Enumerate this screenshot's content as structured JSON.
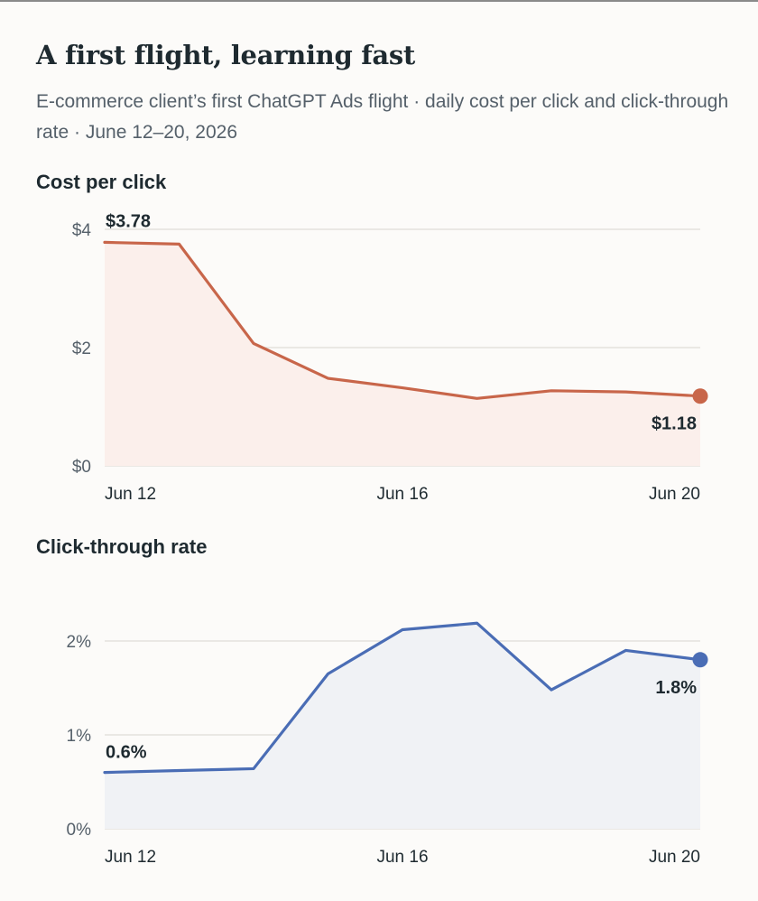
{
  "header": {
    "title": "A first flight, learning fast",
    "subtitle": "E-commerce client’s first ChatGPT Ads flight · daily cost per click and click-through rate · June 12–20, 2026"
  },
  "colors": {
    "cpc_line": "#c8664a",
    "cpc_fill": "#fbefeb",
    "ctr_line": "#4a6db5",
    "ctr_fill": "#f0f2f5",
    "grid": "#e4e2dd"
  },
  "chart_data": [
    {
      "type": "area",
      "title": "Cost per click",
      "x": [
        "Jun 12",
        "Jun 13",
        "Jun 14",
        "Jun 15",
        "Jun 16",
        "Jun 17",
        "Jun 18",
        "Jun 19",
        "Jun 20"
      ],
      "x_tick_labels": [
        "Jun 12",
        "Jun 16",
        "Jun 20"
      ],
      "values": [
        3.78,
        3.75,
        2.07,
        1.48,
        1.32,
        1.14,
        1.27,
        1.25,
        1.18
      ],
      "ylim": [
        0,
        4
      ],
      "y_ticks": [
        0,
        2,
        4
      ],
      "y_tick_labels": [
        "$0",
        "$2",
        "$4"
      ],
      "annotations": {
        "first": "$3.78",
        "last": "$1.18"
      },
      "grid": true,
      "legend": "none"
    },
    {
      "type": "area",
      "title": "Click-through rate",
      "x": [
        "Jun 12",
        "Jun 13",
        "Jun 14",
        "Jun 15",
        "Jun 16",
        "Jun 17",
        "Jun 18",
        "Jun 19",
        "Jun 20"
      ],
      "x_tick_labels": [
        "Jun 12",
        "Jun 16",
        "Jun 20"
      ],
      "values": [
        0.6,
        0.62,
        0.64,
        1.65,
        2.12,
        2.19,
        1.48,
        1.9,
        1.8
      ],
      "ylim": [
        0,
        2.5
      ],
      "y_ticks": [
        0,
        1,
        2
      ],
      "y_tick_labels": [
        "0%",
        "1%",
        "2%"
      ],
      "annotations": {
        "first": "0.6%",
        "last": "1.8%"
      },
      "grid": true,
      "legend": "none"
    }
  ]
}
